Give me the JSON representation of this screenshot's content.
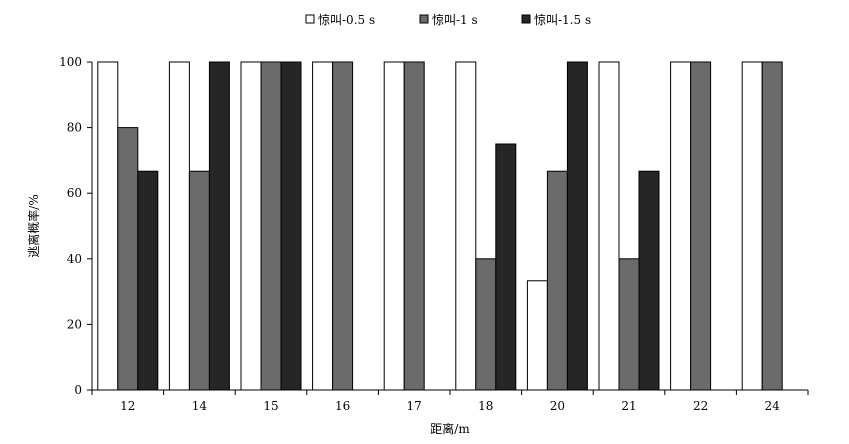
{
  "chart_data": {
    "type": "bar",
    "title": "",
    "xlabel": "距离/m",
    "ylabel": "逃离概率/%",
    "ylim": [
      0,
      100
    ],
    "yticks": [
      0,
      20,
      40,
      60,
      80,
      100
    ],
    "categories": [
      "12",
      "14",
      "15",
      "16",
      "17",
      "18",
      "20",
      "21",
      "22",
      "24"
    ],
    "series": [
      {
        "name": "惊叫-0.5 s",
        "color": "#ffffff",
        "values": [
          100,
          100,
          100,
          100,
          100,
          100,
          33.3,
          100,
          100,
          100
        ]
      },
      {
        "name": "惊叫-1 s",
        "color": "#6b6b6b",
        "values": [
          80,
          66.7,
          100,
          100,
          100,
          40,
          66.7,
          40,
          100,
          100
        ]
      },
      {
        "name": "惊叫-1.5 s",
        "color": "#262626",
        "values": [
          66.7,
          100,
          100,
          0,
          0,
          75,
          100,
          66.7,
          0,
          0
        ]
      }
    ],
    "grid": false,
    "legend_position": "top"
  }
}
